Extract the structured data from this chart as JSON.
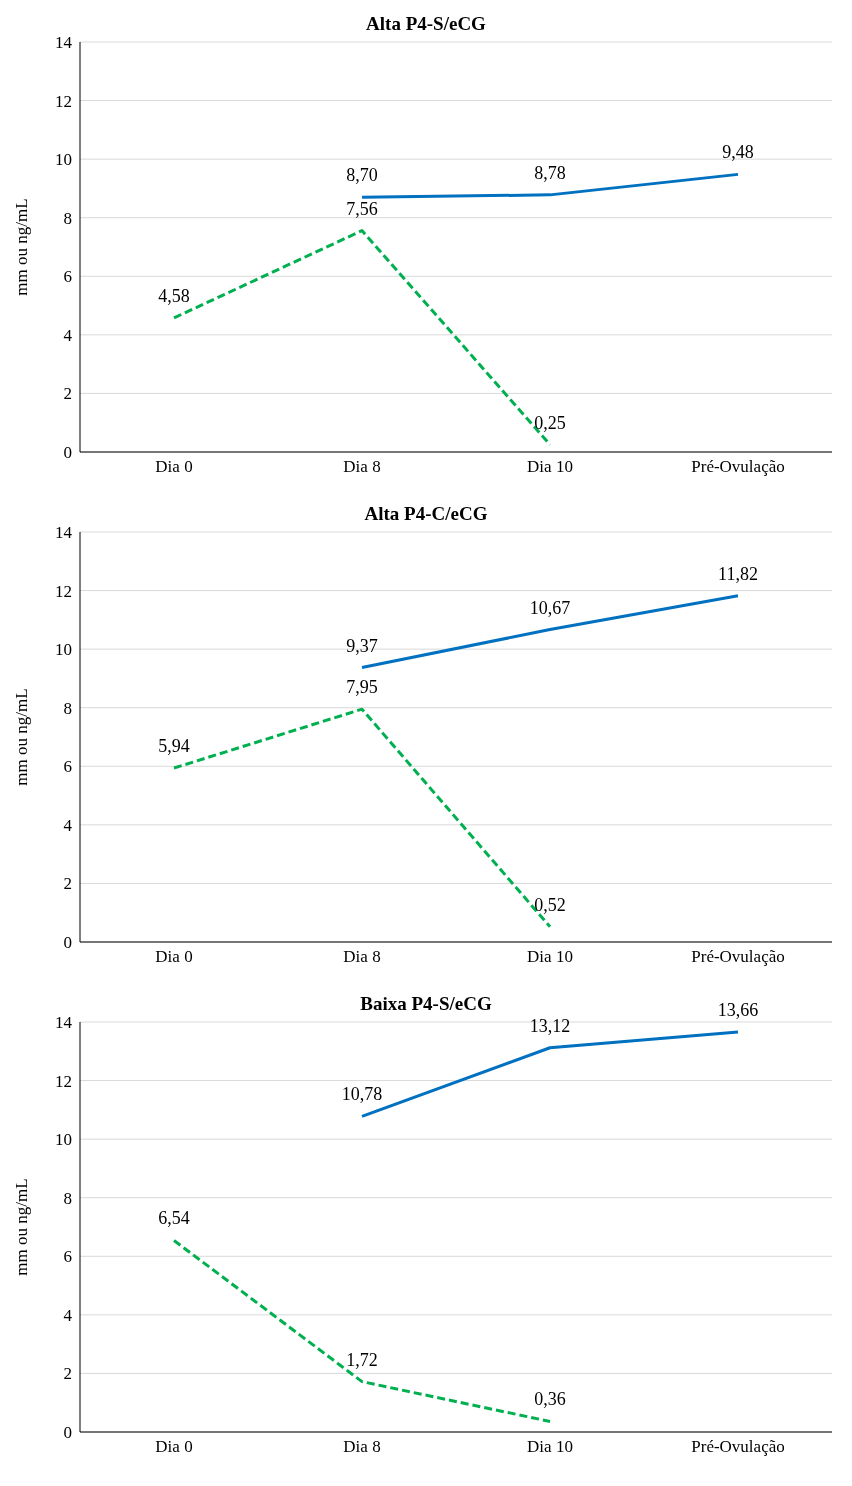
{
  "chart_data": [
    {
      "type": "line",
      "title": "Alta P4-S/eCG",
      "ylabel": "mm ou ng/mL",
      "categories": [
        "Dia 0",
        "Dia 8",
        "Dia 10",
        "Pré-Ovulação"
      ],
      "ylim": [
        0,
        14
      ],
      "yticks": [
        0,
        2,
        4,
        6,
        8,
        10,
        12,
        14
      ],
      "grid": "y",
      "legend": false,
      "marker": "none",
      "series": [
        {
          "color": "#0070c0",
          "line_style": "solid",
          "values": [
            null,
            8.7,
            8.78,
            9.48
          ],
          "value_labels": [
            null,
            "8,70",
            "8,78",
            "9,48"
          ]
        },
        {
          "color": "#00b050",
          "line_style": "dashed",
          "values": [
            4.58,
            7.56,
            0.25,
            null
          ],
          "value_labels": [
            "4,58",
            "7,56",
            "0,25",
            null
          ]
        }
      ]
    },
    {
      "type": "line",
      "title": "Alta P4-C/eCG",
      "ylabel": "mm ou ng/mL",
      "categories": [
        "Dia 0",
        "Dia 8",
        "Dia 10",
        "Pré-Ovulação"
      ],
      "ylim": [
        0,
        14
      ],
      "yticks": [
        0,
        2,
        4,
        6,
        8,
        10,
        12,
        14
      ],
      "grid": "y",
      "legend": false,
      "marker": "none",
      "series": [
        {
          "color": "#0070c0",
          "line_style": "solid",
          "values": [
            null,
            9.37,
            10.67,
            11.82
          ],
          "value_labels": [
            null,
            "9,37",
            "10,67",
            "11,82"
          ]
        },
        {
          "color": "#00b050",
          "line_style": "dashed",
          "values": [
            5.94,
            7.95,
            0.52,
            null
          ],
          "value_labels": [
            "5,94",
            "7,95",
            "0,52",
            null
          ]
        }
      ]
    },
    {
      "type": "line",
      "title": "Baixa P4-S/eCG",
      "ylabel": "mm ou ng/mL",
      "categories": [
        "Dia 0",
        "Dia 8",
        "Dia 10",
        "Pré-Ovulação"
      ],
      "ylim": [
        0,
        14
      ],
      "yticks": [
        0,
        2,
        4,
        6,
        8,
        10,
        12,
        14
      ],
      "grid": "y",
      "legend": false,
      "marker": "none",
      "series": [
        {
          "color": "#0070c0",
          "line_style": "solid",
          "values": [
            null,
            10.78,
            13.12,
            13.66
          ],
          "value_labels": [
            null,
            "10,78",
            "13,12",
            "13,66"
          ]
        },
        {
          "color": "#00b050",
          "line_style": "dashed",
          "values": [
            6.54,
            1.72,
            0.36,
            null
          ],
          "value_labels": [
            "6,54",
            "1,72",
            "0,36",
            null
          ]
        }
      ]
    }
  ]
}
